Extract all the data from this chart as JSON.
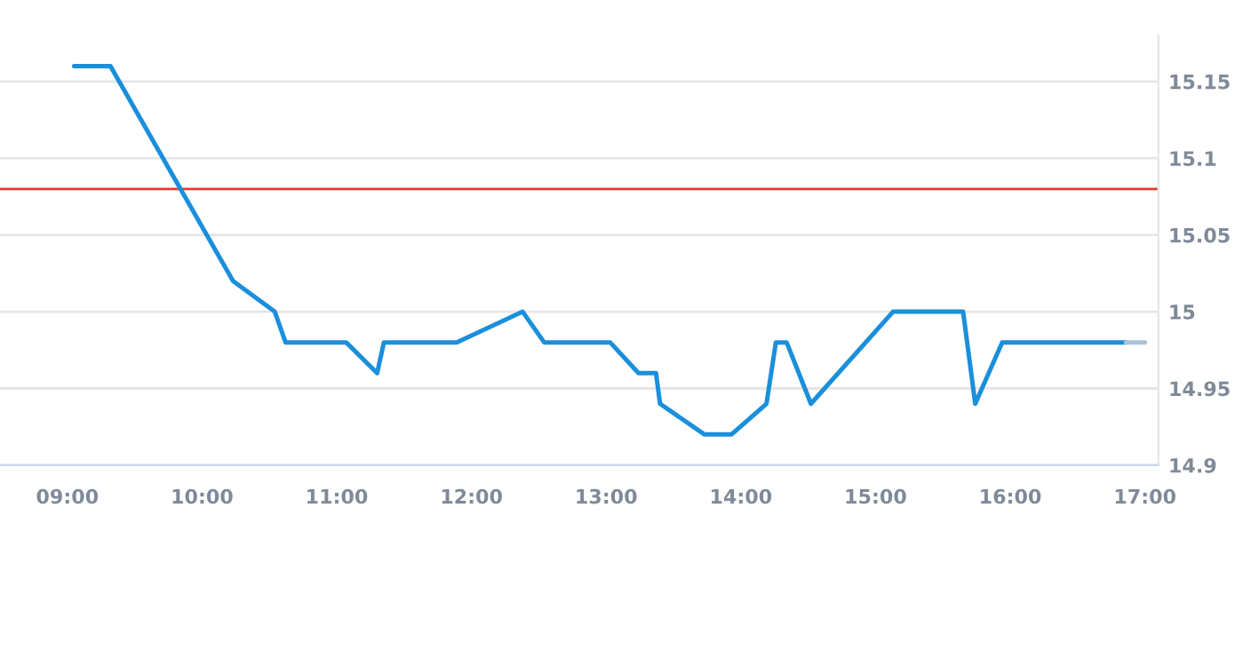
{
  "chart_data": {
    "type": "line",
    "x": [
      9.05,
      9.32,
      10.23,
      10.54,
      10.62,
      11.07,
      11.3,
      11.35,
      11.89,
      12.38,
      12.54,
      13.03,
      13.24,
      13.37,
      13.4,
      13.73,
      13.93,
      14.19,
      14.26,
      14.34,
      14.52,
      15.13,
      15.65,
      15.74,
      15.94,
      16.86
    ],
    "series": [
      {
        "color": "#1a8fdc",
        "values": [
          15.16,
          15.16,
          15.02,
          15.0,
          14.98,
          14.98,
          14.96,
          14.98,
          14.98,
          15.0,
          14.98,
          14.98,
          14.96,
          14.96,
          14.94,
          14.92,
          14.92,
          14.94,
          14.98,
          14.98,
          14.94,
          15.0,
          15.0,
          14.94,
          14.98,
          14.98
        ]
      },
      {
        "color": "#a9c3da",
        "x": [
          16.86,
          17.0
        ],
        "values": [
          14.98,
          14.98
        ]
      }
    ],
    "xlim": [
      8.5,
      17.1
    ],
    "xticks": [
      {
        "value": 9,
        "label": "09:00"
      },
      {
        "value": 10,
        "label": "10:00"
      },
      {
        "value": 11,
        "label": "11:00"
      },
      {
        "value": 12,
        "label": "12:00"
      },
      {
        "value": 13,
        "label": "13:00"
      },
      {
        "value": 14,
        "label": "14:00"
      },
      {
        "value": 15,
        "label": "15:00"
      },
      {
        "value": 16,
        "label": "16:00"
      },
      {
        "value": 17,
        "label": "17:00"
      }
    ],
    "ylim": [
      14.9,
      15.18
    ],
    "yticks": [
      14.9,
      14.95,
      15,
      15.05,
      15.1,
      15.15
    ],
    "ref_lines": [
      {
        "axis": "y",
        "value": 15.08,
        "color": "#e03c31"
      }
    ],
    "grid": "y",
    "line_style": "solid",
    "marker": "none"
  }
}
